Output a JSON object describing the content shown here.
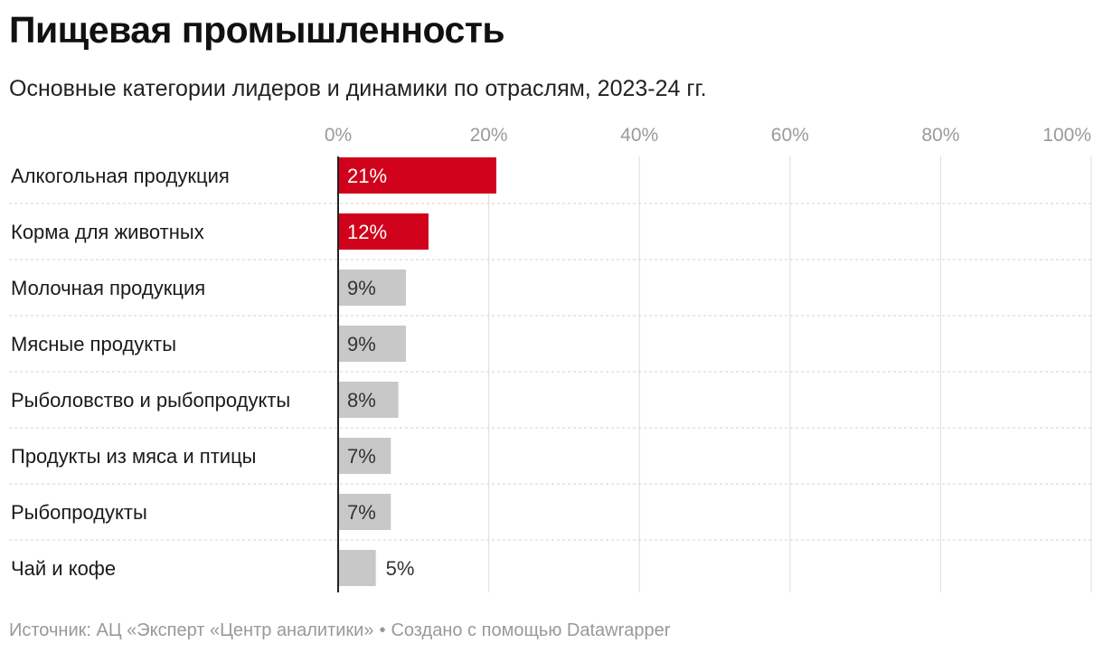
{
  "header": {
    "title": "Пищевая промышленность",
    "subtitle": "Основные категории лидеров и динамики по отраслям, 2023-24 гг."
  },
  "chart_data": {
    "type": "bar",
    "orientation": "horizontal",
    "categories": [
      "Алкогольная продукция",
      "Корма для животных",
      "Молочная продукция",
      "Мясные продукты",
      "Рыболовство и рыбопродукты",
      "Продукты из мяса и птицы",
      "Рыбопродукты",
      "Чай и кофе"
    ],
    "values": [
      21,
      12,
      9,
      9,
      8,
      7,
      7,
      5
    ],
    "value_labels": [
      "21%",
      "12%",
      "9%",
      "9%",
      "8%",
      "7%",
      "7%",
      "5%"
    ],
    "x_ticks": [
      0,
      20,
      40,
      60,
      80,
      100
    ],
    "x_tick_labels": [
      "0%",
      "20%",
      "40%",
      "60%",
      "80%",
      "100%"
    ],
    "xlim": [
      0,
      100
    ],
    "grid": true,
    "axis_position": "top",
    "highlight_color": "#d0021b",
    "default_color": "#c8c8c8",
    "highlighted": [
      0,
      1
    ]
  },
  "footer": {
    "source": "Источник: АЦ «Эксперт «Центр аналитики»",
    "separator": "•",
    "credit": "Создано с помощью Datawrapper"
  }
}
